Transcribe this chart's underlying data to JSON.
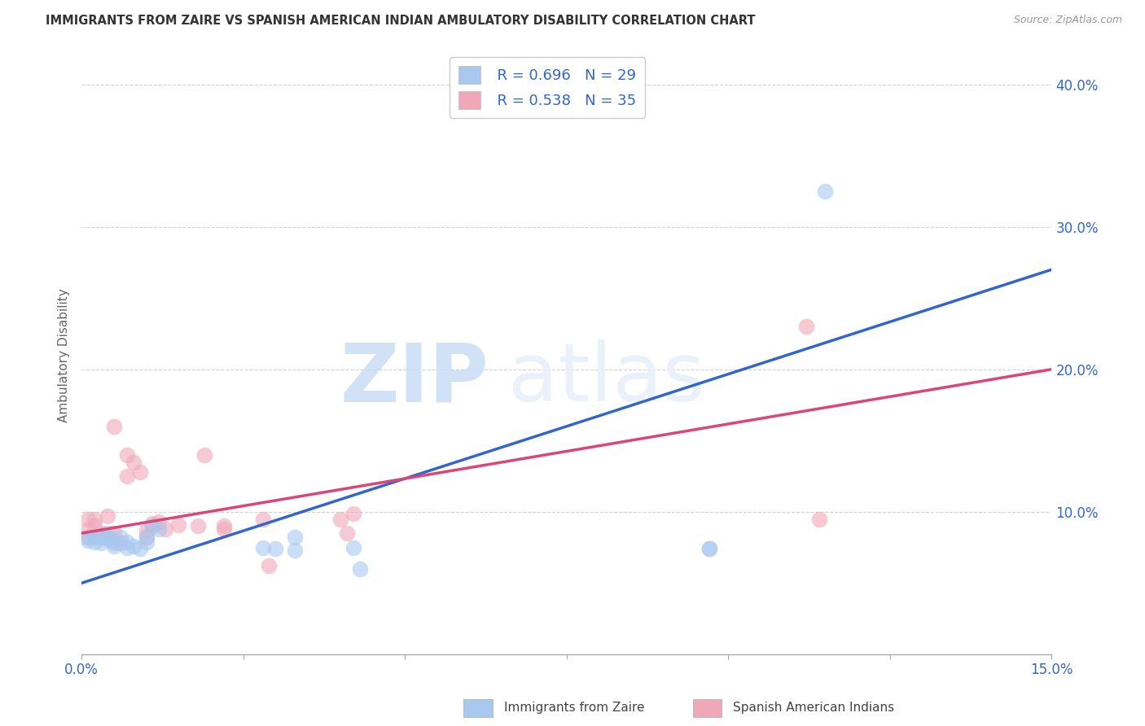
{
  "title": "IMMIGRANTS FROM ZAIRE VS SPANISH AMERICAN INDIAN AMBULATORY DISABILITY CORRELATION CHART",
  "source": "Source: ZipAtlas.com",
  "ylabel": "Ambulatory Disability",
  "xlim": [
    0.0,
    0.15
  ],
  "ylim": [
    0.0,
    0.42
  ],
  "xticks": [
    0.0,
    0.025,
    0.05,
    0.075,
    0.1,
    0.125,
    0.15
  ],
  "xtick_labels_show": [
    true,
    false,
    false,
    false,
    false,
    false,
    true
  ],
  "yticks": [
    0.1,
    0.2,
    0.3,
    0.4
  ],
  "blue_color": "#A8C8F0",
  "pink_color": "#F0A8B8",
  "blue_line_color": "#3366CC",
  "pink_line_color": "#DD4477",
  "legend_blue_R": "R = 0.696",
  "legend_blue_N": "N = 29",
  "legend_pink_R": "R = 0.538",
  "legend_pink_N": "N = 35",
  "series1_label": "Immigrants from Zaire",
  "series2_label": "Spanish American Indians",
  "watermark_zip": "ZIP",
  "watermark_atlas": "atlas",
  "blue_scatter_x": [
    0.001,
    0.001,
    0.002,
    0.002,
    0.003,
    0.003,
    0.004,
    0.004,
    0.005,
    0.005,
    0.005,
    0.006,
    0.007,
    0.007,
    0.008,
    0.009,
    0.01,
    0.01,
    0.011,
    0.012,
    0.028,
    0.03,
    0.033,
    0.033,
    0.042,
    0.043,
    0.097,
    0.097,
    0.115
  ],
  "blue_scatter_y": [
    0.082,
    0.08,
    0.083,
    0.079,
    0.082,
    0.078,
    0.085,
    0.081,
    0.08,
    0.078,
    0.076,
    0.082,
    0.075,
    0.079,
    0.076,
    0.074,
    0.079,
    0.083,
    0.09,
    0.088,
    0.075,
    0.074,
    0.082,
    0.073,
    0.075,
    0.06,
    0.074,
    0.074,
    0.325
  ],
  "pink_scatter_x": [
    0.001,
    0.001,
    0.001,
    0.002,
    0.002,
    0.002,
    0.003,
    0.003,
    0.004,
    0.004,
    0.005,
    0.005,
    0.006,
    0.007,
    0.007,
    0.008,
    0.009,
    0.01,
    0.01,
    0.011,
    0.011,
    0.012,
    0.013,
    0.015,
    0.018,
    0.019,
    0.022,
    0.022,
    0.028,
    0.029,
    0.04,
    0.041,
    0.042,
    0.112,
    0.114
  ],
  "pink_scatter_y": [
    0.082,
    0.088,
    0.095,
    0.083,
    0.09,
    0.095,
    0.085,
    0.082,
    0.082,
    0.097,
    0.085,
    0.16,
    0.078,
    0.125,
    0.14,
    0.135,
    0.128,
    0.087,
    0.082,
    0.09,
    0.092,
    0.093,
    0.088,
    0.091,
    0.09,
    0.14,
    0.09,
    0.088,
    0.095,
    0.062,
    0.095,
    0.085,
    0.099,
    0.23,
    0.095
  ],
  "blue_line_x": [
    0.0,
    0.15
  ],
  "blue_line_y": [
    0.05,
    0.27
  ],
  "pink_line_x": [
    0.0,
    0.15
  ],
  "pink_line_y": [
    0.085,
    0.2
  ],
  "background_color": "#FFFFFF",
  "grid_color": "#CCCCCC",
  "title_color": "#333333",
  "source_color": "#999999",
  "label_blue_color": "#3366CC",
  "ylabel_color": "#666666"
}
